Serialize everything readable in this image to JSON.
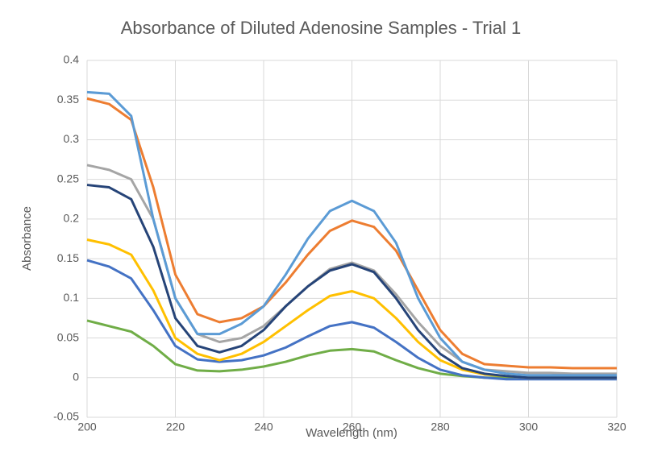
{
  "chart_data": {
    "type": "line",
    "title": "Absorbance of Diluted Adenosine Samples - Trial 1",
    "x_label": "Wavelength (nm)",
    "y_label": "Absorbance",
    "x": [
      200,
      205,
      210,
      215,
      220,
      225,
      230,
      235,
      240,
      245,
      250,
      255,
      260,
      265,
      270,
      275,
      280,
      285,
      290,
      295,
      300,
      305,
      310,
      315,
      320
    ],
    "series": [
      {
        "color": "#70ad47",
        "values": [
          0.072,
          0.065,
          0.058,
          0.04,
          0.017,
          0.009,
          0.008,
          0.01,
          0.014,
          0.02,
          0.028,
          0.034,
          0.036,
          0.033,
          0.022,
          0.012,
          0.005,
          0.002,
          0,
          0,
          0,
          0,
          0,
          0,
          0
        ]
      },
      {
        "color": "#4472c4",
        "values": [
          0.148,
          0.14,
          0.125,
          0.085,
          0.04,
          0.023,
          0.02,
          0.022,
          0.028,
          0.038,
          0.052,
          0.065,
          0.07,
          0.063,
          0.045,
          0.025,
          0.01,
          0.003,
          0,
          -0.002,
          -0.002,
          -0.002,
          -0.002,
          -0.002,
          -0.002
        ]
      },
      {
        "color": "#ffc000",
        "values": [
          0.174,
          0.168,
          0.155,
          0.11,
          0.05,
          0.03,
          0.022,
          0.03,
          0.045,
          0.065,
          0.085,
          0.103,
          0.109,
          0.1,
          0.075,
          0.045,
          0.022,
          0.01,
          0.004,
          0.002,
          0,
          0,
          0,
          0,
          0
        ]
      },
      {
        "color": "#a5a5a5",
        "values": [
          0.268,
          0.262,
          0.25,
          0.2,
          0.1,
          0.055,
          0.045,
          0.05,
          0.065,
          0.09,
          0.115,
          0.137,
          0.145,
          0.135,
          0.105,
          0.07,
          0.04,
          0.02,
          0.01,
          0.008,
          0.006,
          0.006,
          0.005,
          0.005,
          0.005
        ]
      },
      {
        "color": "#264478",
        "values": [
          0.243,
          0.24,
          0.225,
          0.165,
          0.075,
          0.04,
          0.032,
          0.04,
          0.06,
          0.09,
          0.115,
          0.135,
          0.143,
          0.133,
          0.1,
          0.06,
          0.03,
          0.012,
          0.005,
          0.002,
          0,
          0,
          0,
          0,
          0
        ]
      },
      {
        "color": "#ed7d31",
        "values": [
          0.352,
          0.345,
          0.325,
          0.24,
          0.13,
          0.08,
          0.07,
          0.075,
          0.09,
          0.12,
          0.155,
          0.185,
          0.198,
          0.19,
          0.16,
          0.11,
          0.06,
          0.03,
          0.017,
          0.015,
          0.013,
          0.013,
          0.012,
          0.012,
          0.012
        ]
      },
      {
        "color": "#5b9bd5",
        "values": [
          0.36,
          0.358,
          0.33,
          0.2,
          0.1,
          0.055,
          0.055,
          0.068,
          0.09,
          0.13,
          0.175,
          0.21,
          0.223,
          0.21,
          0.17,
          0.1,
          0.05,
          0.02,
          0.01,
          0.005,
          0.003,
          0.003,
          0.003,
          0.003,
          0.003
        ]
      }
    ],
    "xlim": [
      200,
      320
    ],
    "xticks": [
      200,
      220,
      240,
      260,
      280,
      300,
      320
    ],
    "ylim": [
      -0.05,
      0.4
    ],
    "yticks": [
      -0.05,
      0,
      0.05,
      0.1,
      0.15,
      0.2,
      0.25,
      0.3,
      0.35,
      0.4
    ],
    "grid": true
  }
}
